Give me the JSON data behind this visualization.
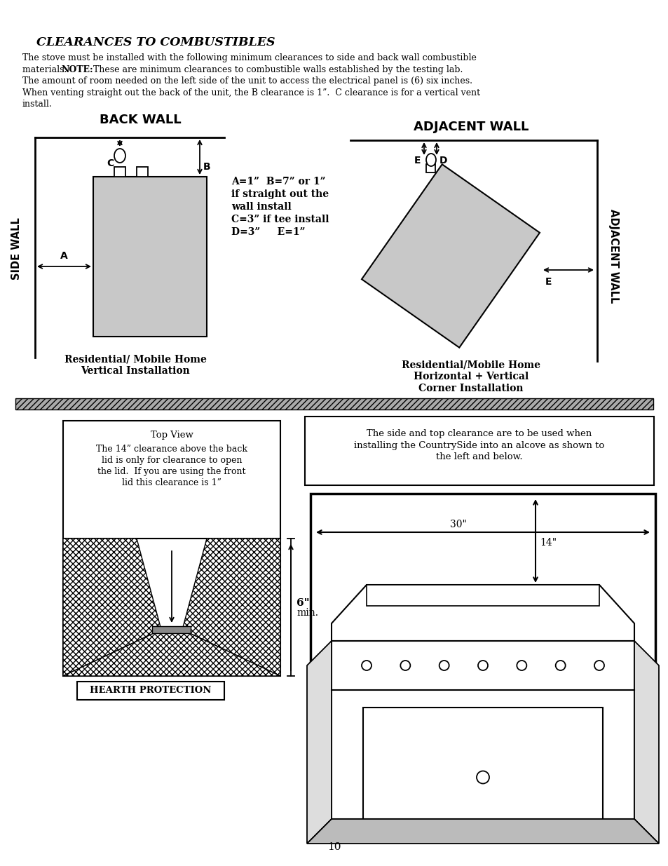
{
  "title": "CLEARANCES TO COMBUSTIBLES",
  "back_wall_label": "BACK WALL",
  "adjacent_wall_label": "ADJACENT WALL",
  "side_wall_label": "SIDE WALL",
  "adjacent_wall_side_label": "ADJACENT WALL",
  "dimensions_text_line1": "A=1”  B=7” or 1”",
  "dimensions_text_line2": "if straight out the",
  "dimensions_text_line3": "wall install",
  "dimensions_text_line4": "C=3” if tee install",
  "dimensions_text_line5": "D=3”     E=1”",
  "residential_vertical_line1": "Residential/ Mobile Home",
  "residential_vertical_line2": "Vertical Installation",
  "residential_corner_line1": "Residential/Mobile Home",
  "residential_corner_line2": "Horizontal + Vertical",
  "residential_corner_line3": "Corner Installation",
  "alcove_text_line1": "The side and top clearance are to be used when",
  "alcove_text_line2": "installing the CountrySide into an alcove as shown to",
  "alcove_text_line3": "the left and below.",
  "top_view_line1": "Top View",
  "top_view_line2": "The 14” clearance above the back",
  "top_view_line3": "lid is only for clearance to open",
  "top_view_line4": "the lid.  If you are using the front",
  "top_view_line5": "lid this clearance is 1”",
  "hearth_label": "HEARTH PROTECTION",
  "six_min": "6\"",
  "min_label": "min.",
  "dim_30": "30\"",
  "dim_14": "14\"",
  "page_number": "10",
  "body_line1": "The stove must be installed with the following minimum clearances to side and back wall combustible",
  "body_line2a": "materials.  ",
  "body_line2b": "NOTE:",
  "body_line2c": "  These are minimum clearances to combustible walls established by the testing lab.",
  "body_line3": "The amount of room needed on the left side of the unit to access the electrical panel is (6) six inches.",
  "body_line4": "When venting straight out the back of the unit, the B clearance is 1”.  C clearance is for a vertical vent",
  "body_line5": "install.",
  "gray_fill": "#c8c8c8"
}
